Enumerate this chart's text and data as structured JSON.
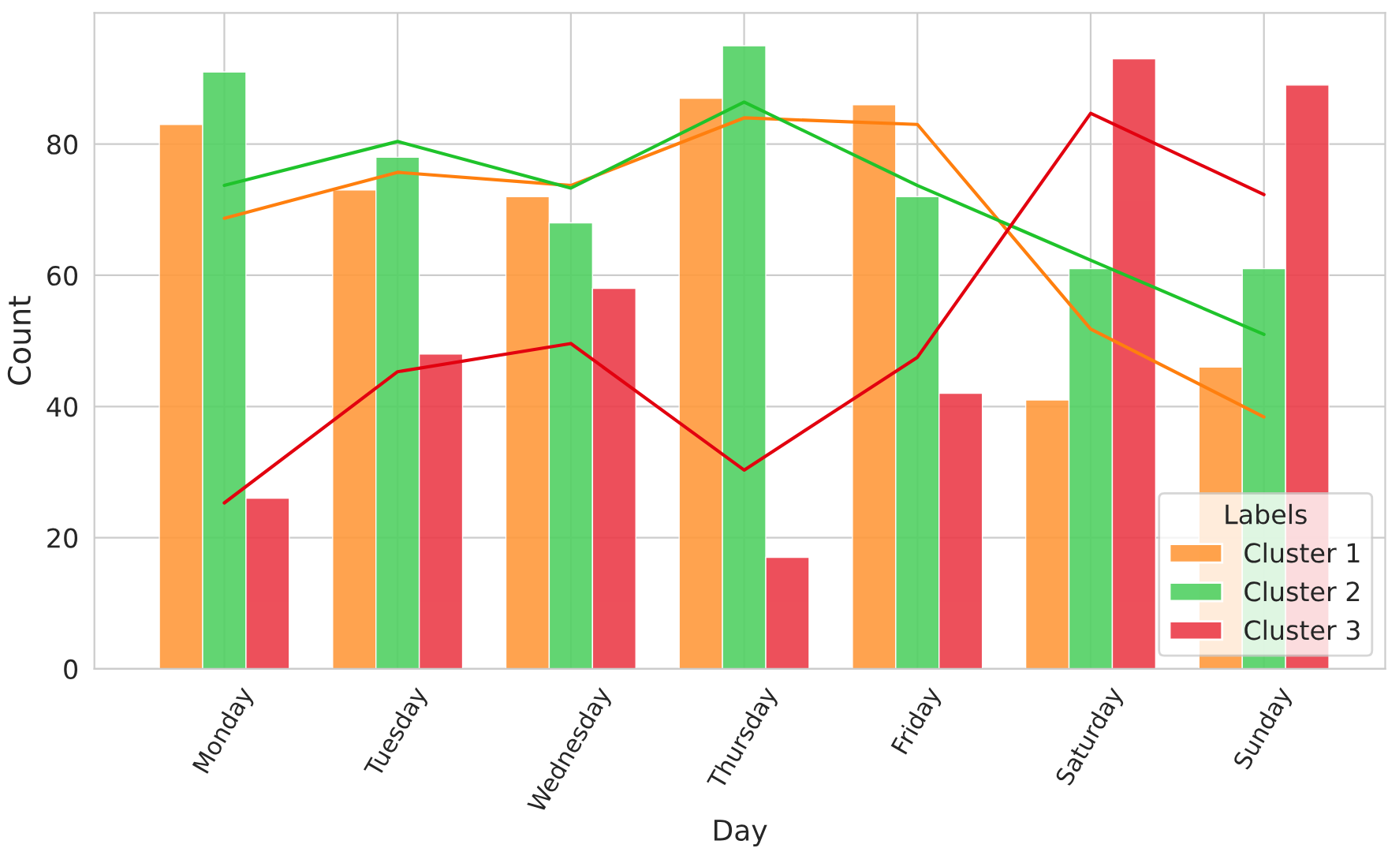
{
  "chart_data": {
    "type": "bar",
    "xlabel": "Day",
    "ylabel": "Count",
    "legend_title": "Labels",
    "categories": [
      "Monday",
      "Tuesday",
      "Wednesday",
      "Thursday",
      "Friday",
      "Saturday",
      "Sunday"
    ],
    "series": [
      {
        "name": "Cluster 1",
        "color": "#ff9a3c",
        "values": [
          83,
          73,
          72,
          87,
          86,
          41,
          46
        ]
      },
      {
        "name": "Cluster 2",
        "color": "#52d163",
        "values": [
          91,
          78,
          68,
          95,
          72,
          61,
          61
        ]
      },
      {
        "name": "Cluster 3",
        "color": "#ec3d4a",
        "values": [
          26,
          48,
          58,
          17,
          42,
          93,
          89
        ]
      },
      {
        "type": "line",
        "color": "#ff7f0e",
        "values": [
          68.7,
          75.7,
          73.7,
          84,
          83,
          51.8,
          38.4
        ]
      },
      {
        "type": "line",
        "color": "#1fc32b",
        "values": [
          73.7,
          80.4,
          73.3,
          86.4,
          73.7,
          62.3,
          51
        ]
      },
      {
        "type": "line",
        "color": "#e2000f",
        "values": [
          25.3,
          45.3,
          49.6,
          30.3,
          47.5,
          84.7,
          72.3
        ]
      }
    ],
    "ylim": [
      0,
      100
    ],
    "yticks": [
      0,
      20,
      40,
      60,
      80
    ],
    "grid": true,
    "legend": "bottom right",
    "line_style": "solid"
  }
}
